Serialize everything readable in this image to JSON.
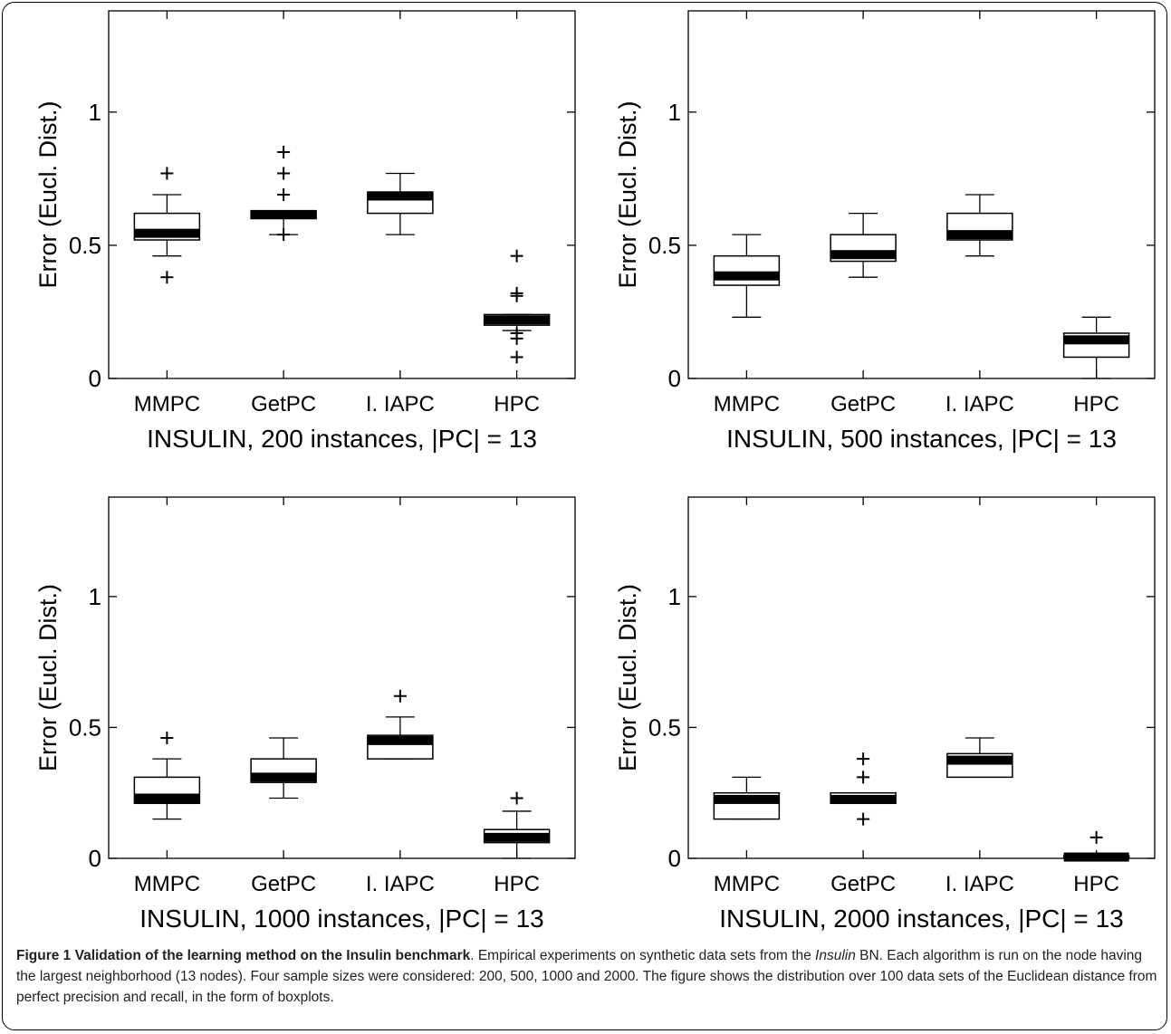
{
  "chart_data": [
    {
      "type": "boxplot",
      "title": "",
      "xlabel": "INSULIN, 200 instances, |PC| = 13",
      "ylabel": "Error (Eucl. Dist.)",
      "ylim": [
        0,
        1.38
      ],
      "yticks": [
        0,
        0.5,
        1
      ],
      "ytick_labels": [
        "0",
        "0.5",
        "1"
      ],
      "categories": [
        "MMPC",
        "GetPC",
        "I. IAPC",
        "HPC"
      ],
      "boxes": [
        {
          "whisker_low": 0.46,
          "q1": 0.52,
          "median": 0.545,
          "q3": 0.62,
          "whisker_high": 0.69,
          "outliers": [
            0.38,
            0.77
          ]
        },
        {
          "whisker_low": 0.54,
          "q1": 0.6,
          "median": 0.615,
          "q3": 0.63,
          "whisker_high": 0.63,
          "outliers": [
            0.54,
            0.69,
            0.77,
            0.85
          ]
        },
        {
          "whisker_low": 0.54,
          "q1": 0.62,
          "median": 0.685,
          "q3": 0.7,
          "whisker_high": 0.77,
          "outliers": []
        },
        {
          "whisker_low": 0.18,
          "q1": 0.2,
          "median": 0.22,
          "q3": 0.24,
          "whisker_high": 0.24,
          "outliers": [
            0.08,
            0.15,
            0.17,
            0.31,
            0.32,
            0.46
          ]
        }
      ]
    },
    {
      "type": "boxplot",
      "title": "",
      "xlabel": "INSULIN, 500 instances, |PC| = 13",
      "ylabel": "Error (Eucl. Dist.)",
      "ylim": [
        0,
        1.38
      ],
      "yticks": [
        0,
        0.5,
        1
      ],
      "ytick_labels": [
        "0",
        "0.5",
        "1"
      ],
      "categories": [
        "MMPC",
        "GetPC",
        "I. IAPC",
        "HPC"
      ],
      "boxes": [
        {
          "whisker_low": 0.23,
          "q1": 0.35,
          "median": 0.385,
          "q3": 0.46,
          "whisker_high": 0.54,
          "outliers": []
        },
        {
          "whisker_low": 0.38,
          "q1": 0.44,
          "median": 0.465,
          "q3": 0.54,
          "whisker_high": 0.62,
          "outliers": []
        },
        {
          "whisker_low": 0.46,
          "q1": 0.52,
          "median": 0.54,
          "q3": 0.62,
          "whisker_high": 0.69,
          "outliers": []
        },
        {
          "whisker_low": 0.0,
          "q1": 0.08,
          "median": 0.145,
          "q3": 0.17,
          "whisker_high": 0.23,
          "outliers": []
        }
      ]
    },
    {
      "type": "boxplot",
      "title": "",
      "xlabel": "INSULIN, 1000 instances, |PC| = 13",
      "ylabel": "Error (Eucl. Dist.)",
      "ylim": [
        0,
        1.38
      ],
      "yticks": [
        0,
        0.5,
        1
      ],
      "ytick_labels": [
        "0",
        "0.5",
        "1"
      ],
      "categories": [
        "MMPC",
        "GetPC",
        "I. IAPC",
        "HPC"
      ],
      "boxes": [
        {
          "whisker_low": 0.15,
          "q1": 0.21,
          "median": 0.23,
          "q3": 0.31,
          "whisker_high": 0.38,
          "outliers": [
            0.46
          ]
        },
        {
          "whisker_low": 0.23,
          "q1": 0.29,
          "median": 0.31,
          "q3": 0.38,
          "whisker_high": 0.46,
          "outliers": []
        },
        {
          "whisker_low": 0.38,
          "q1": 0.38,
          "median": 0.45,
          "q3": 0.47,
          "whisker_high": 0.54,
          "outliers": [
            0.62
          ]
        },
        {
          "whisker_low": 0.0,
          "q1": 0.06,
          "median": 0.08,
          "q3": 0.11,
          "whisker_high": 0.18,
          "outliers": [
            0.23
          ]
        }
      ]
    },
    {
      "type": "boxplot",
      "title": "",
      "xlabel": "INSULIN, 2000 instances, |PC| = 13",
      "ylabel": "Error (Eucl. Dist.)",
      "ylim": [
        0,
        1.38
      ],
      "yticks": [
        0,
        0.5,
        1
      ],
      "ytick_labels": [
        "0",
        "0.5",
        "1"
      ],
      "categories": [
        "MMPC",
        "GetPC",
        "I. IAPC",
        "HPC"
      ],
      "boxes": [
        {
          "whisker_low": 0.15,
          "q1": 0.15,
          "median": 0.225,
          "q3": 0.25,
          "whisker_high": 0.31,
          "outliers": []
        },
        {
          "whisker_low": 0.21,
          "q1": 0.21,
          "median": 0.225,
          "q3": 0.25,
          "whisker_high": 0.25,
          "outliers": [
            0.15,
            0.31,
            0.38
          ]
        },
        {
          "whisker_low": 0.31,
          "q1": 0.31,
          "median": 0.375,
          "q3": 0.4,
          "whisker_high": 0.46,
          "outliers": []
        },
        {
          "whisker_low": 0.0,
          "q1": 0.0,
          "median": 0.005,
          "q3": 0.01,
          "whisker_high": 0.01,
          "outliers": [
            0.08
          ]
        }
      ]
    }
  ],
  "caption": {
    "label": "Figure 1 Validation of the learning method on the Insulin benchmark",
    "text_1": ". Empirical experiments on synthetic data sets from the ",
    "text_italic": "Insulin",
    "text_2": " BN. Each algorithm is run on the node having the largest neighborhood (13 nodes). Four sample sizes were considered: 200, 500, 1000 and 2000. The figure shows the distribution over 100 data sets of the Euclidean distance from perfect precision and recall, in the form of boxplots."
  }
}
